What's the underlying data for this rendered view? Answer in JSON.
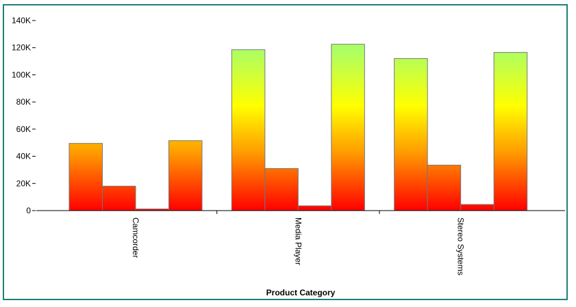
{
  "chart_data": {
    "type": "bar",
    "xlabel": "Product Category",
    "ylabel": "",
    "categories": [
      "Camcorder",
      "Media Player",
      "Stereo Systems"
    ],
    "series": [
      {
        "values": [
          49500,
          118500,
          112000
        ]
      },
      {
        "values": [
          18000,
          31000,
          33500
        ]
      },
      {
        "values": [
          1200,
          3500,
          4500
        ]
      },
      {
        "values": [
          51500,
          122500,
          116500
        ]
      }
    ],
    "ylim": [
      0,
      140000
    ],
    "yticks": [
      {
        "value": 0,
        "label": "0"
      },
      {
        "value": 20000,
        "label": "20K"
      },
      {
        "value": 40000,
        "label": "40K"
      },
      {
        "value": 60000,
        "label": "60K"
      },
      {
        "value": 80000,
        "label": "80K"
      },
      {
        "value": 100000,
        "label": "100K"
      },
      {
        "value": 120000,
        "label": "120K"
      },
      {
        "value": 140000,
        "label": "140K"
      }
    ],
    "grid": false,
    "legend": "none",
    "colors": {
      "low": "#ff0000",
      "mid1": "#ff9900",
      "mid2": "#ffff00",
      "high": "#aaff66",
      "frame": "#1f7f7a",
      "bar_outline": "#777777"
    }
  }
}
